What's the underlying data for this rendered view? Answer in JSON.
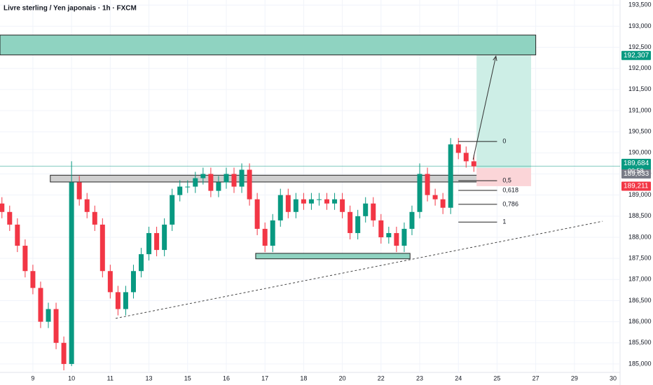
{
  "chart_data": {
    "type": "candlestick",
    "title": "Livre sterling / Yen japonais · 1h · FXCM",
    "up_color": "#089981",
    "down_color": "#f23645",
    "grid": true,
    "x": [
      0.2,
      0.4,
      0.6,
      0.8,
      1.0,
      1.2,
      1.4,
      1.6,
      1.8,
      2.0,
      2.2,
      2.4,
      2.6,
      2.8,
      3.0,
      3.2,
      3.4,
      3.6,
      3.8,
      4.0,
      4.2,
      4.4,
      4.6,
      4.8,
      5.0,
      5.2,
      5.4,
      5.6,
      5.8,
      6.0,
      6.2,
      6.4,
      6.6,
      6.8,
      7.0,
      7.2,
      7.4,
      7.6,
      7.8,
      8.0,
      8.2,
      8.4,
      8.6,
      8.8,
      9.0,
      9.2,
      9.4,
      9.6,
      9.8,
      10.0,
      10.2,
      10.4,
      10.6,
      10.8,
      11.0,
      11.2,
      11.4,
      11.6,
      11.8,
      12.0,
      12.2,
      12.4
    ],
    "open": [
      188.8,
      188.6,
      188.3,
      187.8,
      187.2,
      186.8,
      186.0,
      186.3,
      185.5,
      185.0,
      189.3,
      188.9,
      188.6,
      188.3,
      187.2,
      186.7,
      186.3,
      186.7,
      187.2,
      187.6,
      188.1,
      187.7,
      188.3,
      189.0,
      189.2,
      189.2,
      189.4,
      189.5,
      189.1,
      189.3,
      189.5,
      189.2,
      189.6,
      188.9,
      188.2,
      187.8,
      188.4,
      189.0,
      188.6,
      188.9,
      188.8,
      188.9,
      188.9,
      188.8,
      188.9,
      188.6,
      188.1,
      188.5,
      188.8,
      188.4,
      188.0,
      188.1,
      187.8,
      188.2,
      188.6,
      189.5,
      189.0,
      188.9,
      188.7,
      190.2,
      190.0,
      189.8
    ],
    "high": [
      188.95,
      188.75,
      188.45,
      187.95,
      187.35,
      186.95,
      186.45,
      186.45,
      185.65,
      189.8,
      189.45,
      189.05,
      188.75,
      188.45,
      187.35,
      186.85,
      186.85,
      187.35,
      187.75,
      188.25,
      188.25,
      188.45,
      189.15,
      189.35,
      189.35,
      189.55,
      189.65,
      189.65,
      189.45,
      189.65,
      189.65,
      189.75,
      189.75,
      189.05,
      188.35,
      188.55,
      189.15,
      189.15,
      189.05,
      189.05,
      189.05,
      189.05,
      189.05,
      189.05,
      189.05,
      188.75,
      188.65,
      188.95,
      188.95,
      188.55,
      188.25,
      188.25,
      188.35,
      188.75,
      189.75,
      189.65,
      189.15,
      189.05,
      190.35,
      190.35,
      190.15,
      189.95
    ],
    "low": [
      188.45,
      188.15,
      187.65,
      187.05,
      186.65,
      185.85,
      185.85,
      185.35,
      184.85,
      184.95,
      188.75,
      188.45,
      188.15,
      187.05,
      186.55,
      186.15,
      186.15,
      186.55,
      187.05,
      187.45,
      187.55,
      187.55,
      188.15,
      188.85,
      189.05,
      189.05,
      189.25,
      188.95,
      188.95,
      189.15,
      189.05,
      189.05,
      188.75,
      188.05,
      187.65,
      187.65,
      188.25,
      188.45,
      188.45,
      188.65,
      188.65,
      188.75,
      188.65,
      188.65,
      188.45,
      187.95,
      187.95,
      188.35,
      188.25,
      187.85,
      187.85,
      187.65,
      187.65,
      188.05,
      188.45,
      188.85,
      188.75,
      188.55,
      188.55,
      189.85,
      189.65,
      189.55
    ],
    "close": [
      188.6,
      188.3,
      187.8,
      187.2,
      186.8,
      186.0,
      186.3,
      185.5,
      185.0,
      189.3,
      188.9,
      188.6,
      188.3,
      187.2,
      186.7,
      186.3,
      186.7,
      187.2,
      187.6,
      188.1,
      187.7,
      188.3,
      189.0,
      189.2,
      189.2,
      189.4,
      189.5,
      189.1,
      189.3,
      189.5,
      189.2,
      189.6,
      188.9,
      188.2,
      187.8,
      188.4,
      189.0,
      188.6,
      188.9,
      188.8,
      188.9,
      188.9,
      188.8,
      188.9,
      188.6,
      188.1,
      188.5,
      188.8,
      188.4,
      188.0,
      188.1,
      187.8,
      188.2,
      188.6,
      189.5,
      189.0,
      188.9,
      188.7,
      190.2,
      190.0,
      189.8,
      189.68
    ],
    "xlim": [
      0.15,
      16.18
    ],
    "xticks": [
      {
        "value": 1,
        "label": "9"
      },
      {
        "value": 2,
        "label": "10"
      },
      {
        "value": 3,
        "label": "11"
      },
      {
        "value": 4,
        "label": "13"
      },
      {
        "value": 5,
        "label": "15"
      },
      {
        "value": 6,
        "label": "16"
      },
      {
        "value": 7,
        "label": "17"
      },
      {
        "value": 8,
        "label": "18"
      },
      {
        "value": 9,
        "label": "20"
      },
      {
        "value": 10,
        "label": "22"
      },
      {
        "value": 11,
        "label": "23"
      },
      {
        "value": 12,
        "label": "24"
      },
      {
        "value": 13,
        "label": "25"
      },
      {
        "value": 14,
        "label": "27"
      },
      {
        "value": 15,
        "label": "29"
      },
      {
        "value": 16,
        "label": "30"
      }
    ],
    "ylim": [
      184.8,
      193.62
    ],
    "yticks": [
      {
        "value": 185,
        "label": "185,000"
      },
      {
        "value": 185.5,
        "label": "185,500"
      },
      {
        "value": 186,
        "label": "186,000"
      },
      {
        "value": 186.5,
        "label": "186,500"
      },
      {
        "value": 187,
        "label": "187,000"
      },
      {
        "value": 187.5,
        "label": "187,500"
      },
      {
        "value": 188,
        "label": "188,000"
      },
      {
        "value": 188.5,
        "label": "188,500"
      },
      {
        "value": 189,
        "label": "189,000"
      },
      {
        "value": 189.5,
        "label": "189,500"
      },
      {
        "value": 190,
        "label": "190,000"
      },
      {
        "value": 190.5,
        "label": "190,500"
      },
      {
        "value": 191,
        "label": "191,000"
      },
      {
        "value": 191.5,
        "label": "191,500"
      },
      {
        "value": 192,
        "label": "192,000"
      },
      {
        "value": 192.5,
        "label": "192,500"
      },
      {
        "value": 193,
        "label": "193,000"
      },
      {
        "value": 193.5,
        "label": "193,500"
      }
    ],
    "rectangles": [
      {
        "x": [
          0.15,
          14.0
        ],
        "y": [
          192.32,
          192.79
        ],
        "fill": "#8fd3c1",
        "stroke": "#222222"
      },
      {
        "x": [
          1.45,
          12.96
        ],
        "y": [
          189.31,
          189.47
        ],
        "fill": "#cfcfcf",
        "stroke": "#222222"
      },
      {
        "x": [
          6.76,
          10.75
        ],
        "y": [
          187.49,
          187.62
        ],
        "fill": "#8fd3c1",
        "stroke": "#222222"
      },
      {
        "x": [
          12.47,
          13.88
        ],
        "y": [
          189.64,
          192.307
        ],
        "fill": "#cdeee6"
      },
      {
        "x": [
          12.47,
          13.88
        ],
        "y": [
          189.211,
          189.64
        ],
        "fill": "#fbd5d8"
      }
    ],
    "trend_line": {
      "x": [
        3.14,
        15.73
      ],
      "y": [
        186.08,
        188.38
      ]
    },
    "arrow": {
      "x": [
        12.38,
        12.97
      ],
      "y": [
        189.84,
        192.29
      ]
    },
    "fib": {
      "x": [
        12.0,
        13.0
      ],
      "levels": [
        {
          "value": 190.27,
          "label": "0"
        },
        {
          "value": 189.34,
          "label": "0,5"
        },
        {
          "value": 189.11,
          "label": "0,618"
        },
        {
          "value": 188.78,
          "label": "0,786"
        },
        {
          "value": 188.36,
          "label": "1"
        }
      ]
    },
    "price_tags": [
      {
        "value": 192.307,
        "label": "192,307",
        "color": "#089981"
      },
      {
        "value": 189.684,
        "label": "189,684",
        "color": "#089981"
      },
      {
        "value": 189.633,
        "label": "189,633",
        "color": "#787b86"
      },
      {
        "value": 189.211,
        "label": "189,211",
        "color": "#f23645"
      }
    ],
    "countdown": "00:58"
  }
}
